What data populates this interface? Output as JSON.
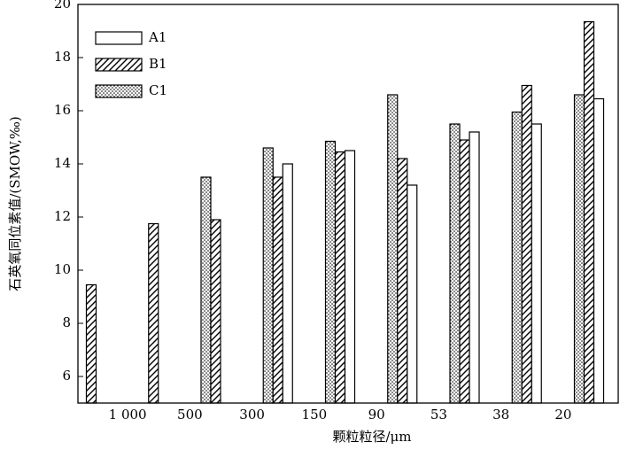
{
  "chart_data": {
    "type": "bar",
    "x_label": "颗粒粒径/μm",
    "y_label": "石英氧同位素值/(SMOW,‰)",
    "categories": [
      null,
      null,
      null,
      null,
      null,
      null,
      null,
      null,
      null
    ],
    "boundary_labels": [
      "1 000",
      "500",
      "300",
      "150",
      "90",
      "53",
      "38",
      "20"
    ],
    "series": [
      {
        "name": "A1",
        "pattern": "none",
        "values": [
          null,
          null,
          null,
          14.0,
          14.5,
          13.2,
          15.2,
          15.5,
          16.45
        ]
      },
      {
        "name": "B1",
        "pattern": "hatch",
        "values": [
          9.45,
          11.75,
          11.9,
          13.5,
          14.45,
          14.2,
          14.9,
          16.95,
          19.35
        ]
      },
      {
        "name": "C1",
        "pattern": "dots",
        "values": [
          null,
          null,
          13.5,
          14.6,
          14.85,
          16.6,
          15.5,
          15.95,
          16.6
        ]
      }
    ],
    "bar_order": [
      "C1",
      "B1",
      "A1"
    ],
    "ylim": [
      5,
      20
    ],
    "yticks": [
      6,
      8,
      10,
      12,
      14,
      16,
      18,
      20
    ],
    "legend": "upper left"
  }
}
